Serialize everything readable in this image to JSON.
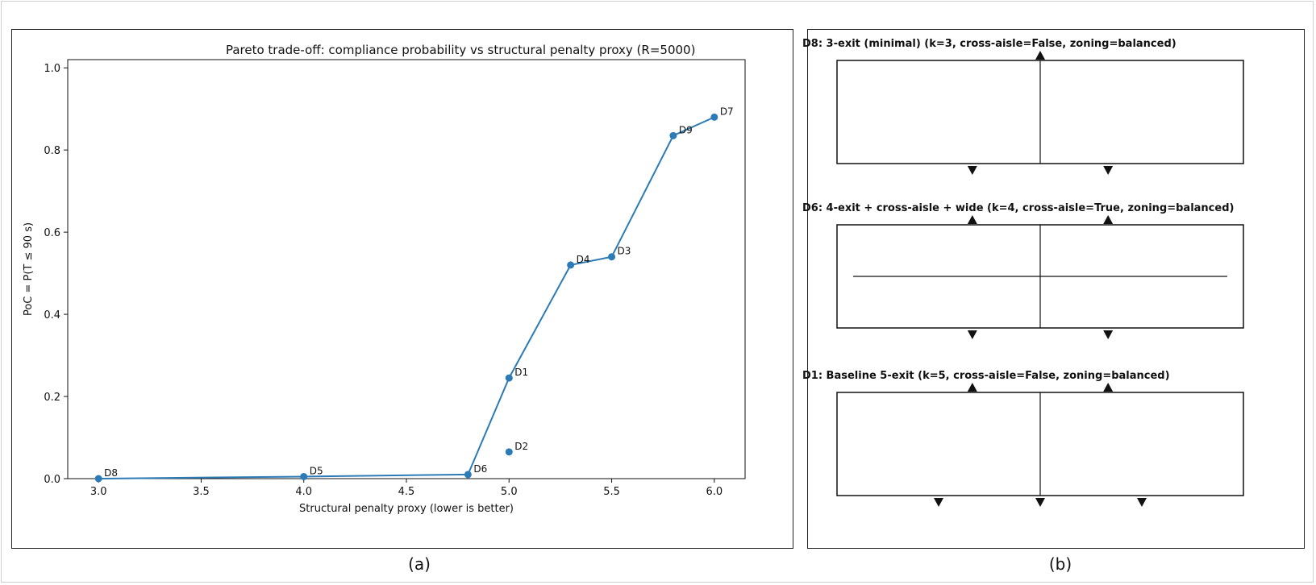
{
  "chart_data": [
    {
      "type": "line",
      "title": "Pareto trade-off: compliance probability vs structural penalty proxy (R=5000)",
      "xlabel": "Structural penalty proxy (lower is better)",
      "ylabel": "PoC = P(T ≤ 90 s)",
      "xlim": [
        2.85,
        6.15
      ],
      "ylim": [
        0.0,
        1.02
      ],
      "xticks": [
        3.0,
        3.5,
        4.0,
        4.5,
        5.0,
        5.5,
        6.0
      ],
      "yticks": [
        0.0,
        0.2,
        0.4,
        0.6,
        0.8,
        1.0
      ],
      "grid": false,
      "color": "#2c7bb6",
      "points": [
        {
          "label": "D8",
          "x": 3.0,
          "y": 0.0
        },
        {
          "label": "D5",
          "x": 4.0,
          "y": 0.005
        },
        {
          "label": "D6",
          "x": 4.8,
          "y": 0.01
        },
        {
          "label": "D1",
          "x": 5.0,
          "y": 0.245
        },
        {
          "label": "D2",
          "x": 5.0,
          "y": 0.065
        },
        {
          "label": "D4",
          "x": 5.3,
          "y": 0.52
        },
        {
          "label": "D3",
          "x": 5.5,
          "y": 0.54
        },
        {
          "label": "D9",
          "x": 5.8,
          "y": 0.835
        },
        {
          "label": "D7",
          "x": 6.0,
          "y": 0.88
        }
      ],
      "frontier": [
        "D8",
        "D5",
        "D6",
        "D1",
        "D4",
        "D3",
        "D9",
        "D7"
      ]
    },
    {
      "type": "diagram",
      "layouts": [
        {
          "title": "D8: 3-exit (minimal) (k=3, cross-aisle=False, zoning=balanced)",
          "cross_aisle": false,
          "exits": [
            {
              "side": "top",
              "pos": 0.5
            },
            {
              "side": "bottom",
              "pos": 0.333
            },
            {
              "side": "bottom",
              "pos": 0.667
            }
          ]
        },
        {
          "title": "D6: 4-exit + cross-aisle + wide (k=4, cross-aisle=True, zoning=balanced)",
          "cross_aisle": true,
          "exits": [
            {
              "side": "top",
              "pos": 0.333
            },
            {
              "side": "top",
              "pos": 0.667
            },
            {
              "side": "bottom",
              "pos": 0.333
            },
            {
              "side": "bottom",
              "pos": 0.667
            }
          ]
        },
        {
          "title": "D1: Baseline 5-exit (k=5, cross-aisle=False, zoning=balanced)",
          "cross_aisle": false,
          "exits": [
            {
              "side": "top",
              "pos": 0.333
            },
            {
              "side": "top",
              "pos": 0.667
            },
            {
              "side": "bottom",
              "pos": 0.25
            },
            {
              "side": "bottom",
              "pos": 0.5
            },
            {
              "side": "bottom",
              "pos": 0.75
            }
          ]
        }
      ]
    }
  ],
  "captions": {
    "a": "(a)",
    "b": "(b)"
  }
}
